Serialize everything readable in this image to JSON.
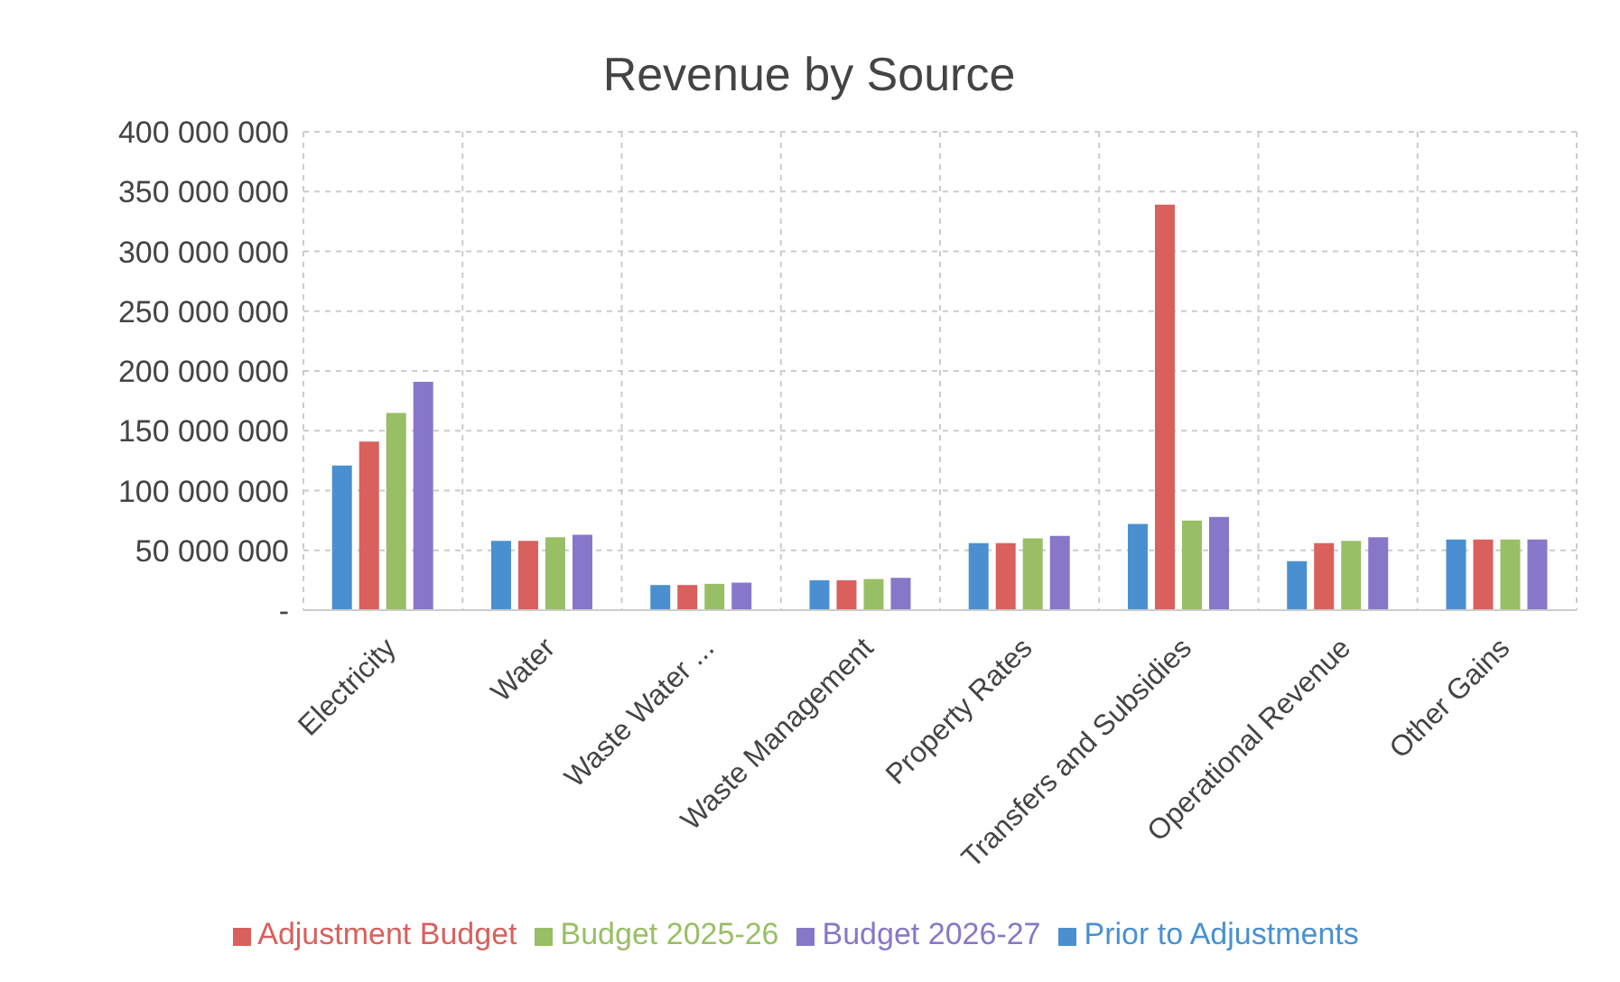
{
  "chart_data": {
    "type": "bar",
    "title": "Revenue by Source",
    "categories": [
      "Electricity",
      "Water",
      "Waste Water ...",
      "Waste Management",
      "Property Rates",
      "Transfers and Subsidies",
      "Operational Revenue",
      "Other Gains"
    ],
    "series": [
      {
        "name": "Prior to Adjustments",
        "color": "#4a90d0",
        "values": [
          121000000,
          58000000,
          21000000,
          25000000,
          56000000,
          72000000,
          41000000,
          59000000
        ]
      },
      {
        "name": "Adjustment Budget",
        "color": "#d9605c",
        "values": [
          141000000,
          58000000,
          21000000,
          25000000,
          56000000,
          339000000,
          56000000,
          59000000
        ]
      },
      {
        "name": "Budget 2025-26",
        "color": "#98bf65",
        "values": [
          165000000,
          61000000,
          22000000,
          26000000,
          60000000,
          75000000,
          58000000,
          59000000
        ]
      },
      {
        "name": "Budget 2026-27",
        "color": "#8877c8",
        "values": [
          191000000,
          63000000,
          23000000,
          27000000,
          62000000,
          78000000,
          61000000,
          59000000
        ]
      }
    ],
    "ylim": [
      0,
      400000000
    ],
    "yticks": [
      {
        "value": 0,
        "label": "-"
      },
      {
        "value": 50000000,
        "label": "50 000 000"
      },
      {
        "value": 100000000,
        "label": "100 000 000"
      },
      {
        "value": 150000000,
        "label": "150 000 000"
      },
      {
        "value": 200000000,
        "label": "200 000 000"
      },
      {
        "value": 250000000,
        "label": "250 000 000"
      },
      {
        "value": 300000000,
        "label": "300 000 000"
      },
      {
        "value": 350000000,
        "label": "350 000 000"
      },
      {
        "value": 400000000,
        "label": "400 000 000"
      }
    ],
    "grid": true,
    "legend": "bottom"
  }
}
